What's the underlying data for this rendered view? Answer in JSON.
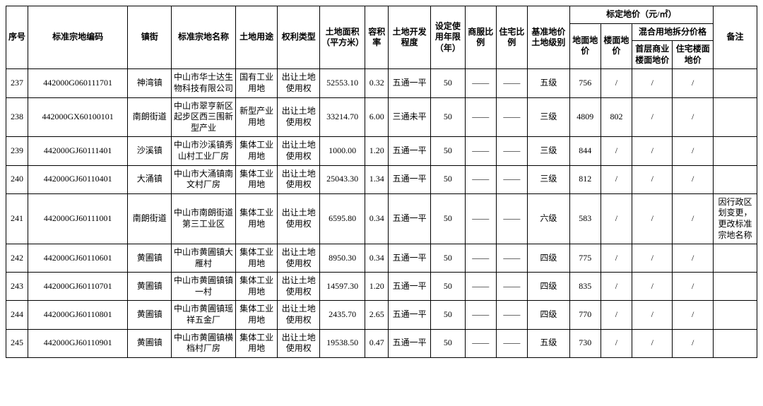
{
  "headers": {
    "seq": "序号",
    "parcel_code": "标准宗地编码",
    "town": "镇街",
    "parcel_name": "标准宗地名称",
    "land_use": "土地用途",
    "right_type": "权利类型",
    "area": "土地面积（平方米）",
    "floor_ratio": "容积率",
    "dev_level": "土地开发程度",
    "use_years": "设定使用年限（年）",
    "commercial_ratio": "商服比例",
    "residential_ratio": "住宅比例",
    "price_grade": "基准地价土地级别",
    "price_group": "标定地价（元/㎡）",
    "ground_price": "地面地价",
    "floor_price": "楼面地价",
    "mixed_group": "混合用地拆分价格",
    "mixed_commercial": "首层商业楼面地价",
    "mixed_residential": "住宅楼面地价",
    "remarks": "备注"
  },
  "rows": [
    {
      "seq": "237",
      "parcel_code": "442000G060111701",
      "town": "神湾镇",
      "parcel_name": "中山市华士达生物科技有限公司",
      "land_use": "国有工业用地",
      "right_type": "出让土地使用权",
      "area": "52553.10",
      "floor_ratio": "0.32",
      "dev_level": "五通一平",
      "use_years": "50",
      "commercial_ratio": "——",
      "residential_ratio": "——",
      "price_grade": "五级",
      "ground_price": "756",
      "floor_price": "/",
      "mixed_commercial": "/",
      "mixed_residential": "/",
      "remarks": ""
    },
    {
      "seq": "238",
      "parcel_code": "442000GX60100101",
      "town": "南朗街道",
      "parcel_name": "中山市翠亨新区起步区西三围新型产业",
      "land_use": "新型产业用地",
      "right_type": "出让土地使用权",
      "area": "33214.70",
      "floor_ratio": "6.00",
      "dev_level": "三通未平",
      "use_years": "50",
      "commercial_ratio": "——",
      "residential_ratio": "——",
      "price_grade": "三级",
      "ground_price": "4809",
      "floor_price": "802",
      "mixed_commercial": "/",
      "mixed_residential": "/",
      "remarks": ""
    },
    {
      "seq": "239",
      "parcel_code": "442000GJ60111401",
      "town": "沙溪镇",
      "parcel_name": "中山市沙溪镇秀山村工业厂房",
      "land_use": "集体工业用地",
      "right_type": "出让土地使用权",
      "area": "1000.00",
      "floor_ratio": "1.20",
      "dev_level": "五通一平",
      "use_years": "50",
      "commercial_ratio": "——",
      "residential_ratio": "——",
      "price_grade": "三级",
      "ground_price": "844",
      "floor_price": "/",
      "mixed_commercial": "/",
      "mixed_residential": "/",
      "remarks": ""
    },
    {
      "seq": "240",
      "parcel_code": "442000GJ60110401",
      "town": "大涌镇",
      "parcel_name": "中山市大涌镇南文村厂房",
      "land_use": "集体工业用地",
      "right_type": "出让土地使用权",
      "area": "25043.30",
      "floor_ratio": "1.34",
      "dev_level": "五通一平",
      "use_years": "50",
      "commercial_ratio": "——",
      "residential_ratio": "——",
      "price_grade": "三级",
      "ground_price": "812",
      "floor_price": "/",
      "mixed_commercial": "/",
      "mixed_residential": "/",
      "remarks": ""
    },
    {
      "seq": "241",
      "parcel_code": "442000GJ60111001",
      "town": "南朗街道",
      "parcel_name": "中山市南朗街道第三工业区",
      "land_use": "集体工业用地",
      "right_type": "出让土地使用权",
      "area": "6595.80",
      "floor_ratio": "0.34",
      "dev_level": "五通一平",
      "use_years": "50",
      "commercial_ratio": "——",
      "residential_ratio": "——",
      "price_grade": "六级",
      "ground_price": "583",
      "floor_price": "/",
      "mixed_commercial": "/",
      "mixed_residential": "/",
      "remarks": "因行政区划变更，更改标准宗地名称"
    },
    {
      "seq": "242",
      "parcel_code": "442000GJ60110601",
      "town": "黄圃镇",
      "parcel_name": "中山市黄圃镇大雁村",
      "land_use": "集体工业用地",
      "right_type": "出让土地使用权",
      "area": "8950.30",
      "floor_ratio": "0.34",
      "dev_level": "五通一平",
      "use_years": "50",
      "commercial_ratio": "——",
      "residential_ratio": "——",
      "price_grade": "四级",
      "ground_price": "775",
      "floor_price": "/",
      "mixed_commercial": "/",
      "mixed_residential": "/",
      "remarks": ""
    },
    {
      "seq": "243",
      "parcel_code": "442000GJ60110701",
      "town": "黄圃镇",
      "parcel_name": "中山市黄圃镇镇一村",
      "land_use": "集体工业用地",
      "right_type": "出让土地使用权",
      "area": "14597.30",
      "floor_ratio": "1.20",
      "dev_level": "五通一平",
      "use_years": "50",
      "commercial_ratio": "——",
      "residential_ratio": "——",
      "price_grade": "四级",
      "ground_price": "835",
      "floor_price": "/",
      "mixed_commercial": "/",
      "mixed_residential": "/",
      "remarks": ""
    },
    {
      "seq": "244",
      "parcel_code": "442000GJ60110801",
      "town": "黄圃镇",
      "parcel_name": "中山市黄圃镇瑶祥五金厂",
      "land_use": "集体工业用地",
      "right_type": "出让土地使用权",
      "area": "2435.70",
      "floor_ratio": "2.65",
      "dev_level": "五通一平",
      "use_years": "50",
      "commercial_ratio": "——",
      "residential_ratio": "——",
      "price_grade": "四级",
      "ground_price": "770",
      "floor_price": "/",
      "mixed_commercial": "/",
      "mixed_residential": "/",
      "remarks": ""
    },
    {
      "seq": "245",
      "parcel_code": "442000GJ60110901",
      "town": "黄圃镇",
      "parcel_name": "中山市黄圃镇横档村厂房",
      "land_use": "集体工业用地",
      "right_type": "出让土地使用权",
      "area": "19538.50",
      "floor_ratio": "0.47",
      "dev_level": "五通一平",
      "use_years": "50",
      "commercial_ratio": "——",
      "residential_ratio": "——",
      "price_grade": "五级",
      "ground_price": "730",
      "floor_price": "/",
      "mixed_commercial": "/",
      "mixed_residential": "/",
      "remarks": ""
    }
  ]
}
